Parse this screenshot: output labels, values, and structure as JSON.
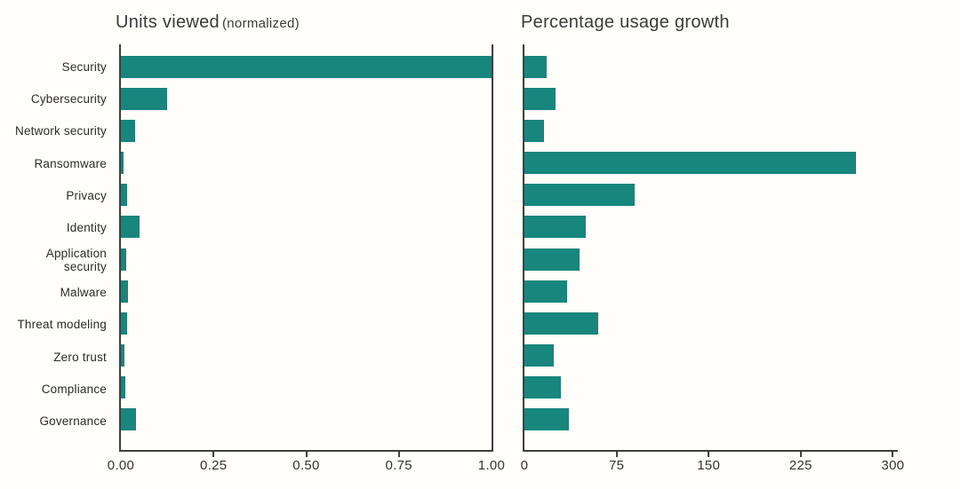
{
  "figure": {
    "bar_color": "#17867c",
    "axis_color": "#3f3f3f",
    "background": "#fffefa",
    "text_color": "#2e2e2e"
  },
  "chart_data": [
    {
      "type": "bar",
      "orientation": "horizontal",
      "title": "Units viewed",
      "title_suffix": "(normalized)",
      "categories": [
        "Security",
        "Cybersecurity",
        "Network security",
        "Ransomware",
        "Privacy",
        "Identity",
        "Application security",
        "Malware",
        "Threat modeling",
        "Zero trust",
        "Compliance",
        "Governance"
      ],
      "values": [
        1.0,
        0.125,
        0.038,
        0.006,
        0.017,
        0.05,
        0.014,
        0.02,
        0.017,
        0.01,
        0.013,
        0.04
      ],
      "xlim": [
        0,
        1
      ],
      "x_ticks": [
        "0.00",
        "0.25",
        "0.50",
        "0.75",
        "1.00"
      ],
      "x_tick_values": [
        0,
        0.25,
        0.5,
        0.75,
        1.0
      ],
      "tick_marks": [
        0.25,
        0.5,
        0.75
      ],
      "grid": false,
      "legend": false,
      "show_category_labels": true
    },
    {
      "type": "bar",
      "orientation": "horizontal",
      "title": "Percentage usage growth",
      "title_suffix": "",
      "categories": [
        "Security",
        "Cybersecurity",
        "Network security",
        "Ransomware",
        "Privacy",
        "Identity",
        "Application security",
        "Malware",
        "Threat modeling",
        "Zero trust",
        "Compliance",
        "Governance"
      ],
      "values": [
        18,
        25,
        16,
        270,
        90,
        50,
        45,
        35,
        60,
        24,
        30,
        36
      ],
      "xlim": [
        0,
        304
      ],
      "x_ticks": [
        "0",
        "75",
        "150",
        "225",
        "300"
      ],
      "x_tick_values": [
        0,
        75,
        150,
        225,
        300
      ],
      "tick_marks": [
        75,
        150,
        225,
        300
      ],
      "grid": false,
      "legend": false,
      "show_category_labels": false
    }
  ]
}
